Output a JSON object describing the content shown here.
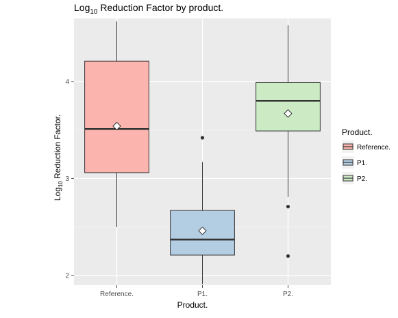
{
  "chart_data": {
    "type": "box",
    "title_main": "Log",
    "title_sub": "10",
    "title_rest": " Reduction Factor by product.",
    "xlabel": "Product.",
    "ylabel_main": "Log",
    "ylabel_sub": "10",
    "ylabel_rest": " Reduction Factor.",
    "ylim": [
      1.9,
      4.65
    ],
    "yticks": [
      2,
      3,
      4
    ],
    "categories": [
      "Reference.",
      "P1.",
      "P2."
    ],
    "colors": [
      "#fbb4ae",
      "#b3cde3",
      "#ccebc5"
    ],
    "boxes": [
      {
        "category": "Reference.",
        "min": 2.5,
        "q1": 3.06,
        "median": 3.51,
        "q3": 4.21,
        "max": 4.62,
        "mean": 3.54,
        "outliers": []
      },
      {
        "category": "P1.",
        "min": 1.91,
        "q1": 2.21,
        "median": 2.37,
        "q3": 2.67,
        "max": 3.17,
        "mean": 2.46,
        "outliers": [
          3.42
        ]
      },
      {
        "category": "P2.",
        "min": 2.81,
        "q1": 3.49,
        "median": 3.8,
        "q3": 3.99,
        "max": 4.58,
        "mean": 3.67,
        "outliers": [
          2.71,
          2.2
        ]
      }
    ],
    "legend_title": "Product.",
    "legend_position": "right",
    "grid": true,
    "panel_color": "#ebebeb"
  }
}
